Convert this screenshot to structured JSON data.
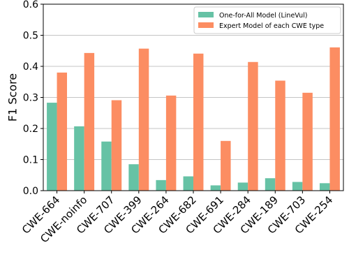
{
  "chart_data": {
    "type": "bar",
    "ylabel": "F1 Score",
    "ylim": [
      0,
      0.6
    ],
    "yticks": [
      "0.0",
      "0.1",
      "0.2",
      "0.3",
      "0.4",
      "0.5",
      "0.6"
    ],
    "grid": "horizontal",
    "legend_position": "top-right",
    "categories": [
      "CWE-664",
      "CWE-noinfo",
      "CWE-707",
      "CWE-399",
      "CWE-264",
      "CWE-682",
      "CWE-691",
      "CWE-284",
      "CWE-189",
      "CWE-703",
      "CWE-254"
    ],
    "series": [
      {
        "name": "One-for-All Model (LineVul)",
        "color": "#66c2a5",
        "values": [
          0.283,
          0.207,
          0.158,
          0.085,
          0.034,
          0.046,
          0.017,
          0.026,
          0.04,
          0.028,
          0.024
        ]
      },
      {
        "name": "Expert Model of each CWE type",
        "color": "#fc8d62",
        "values": [
          0.38,
          0.443,
          0.291,
          0.457,
          0.306,
          0.441,
          0.16,
          0.414,
          0.354,
          0.315,
          0.461
        ]
      }
    ]
  }
}
